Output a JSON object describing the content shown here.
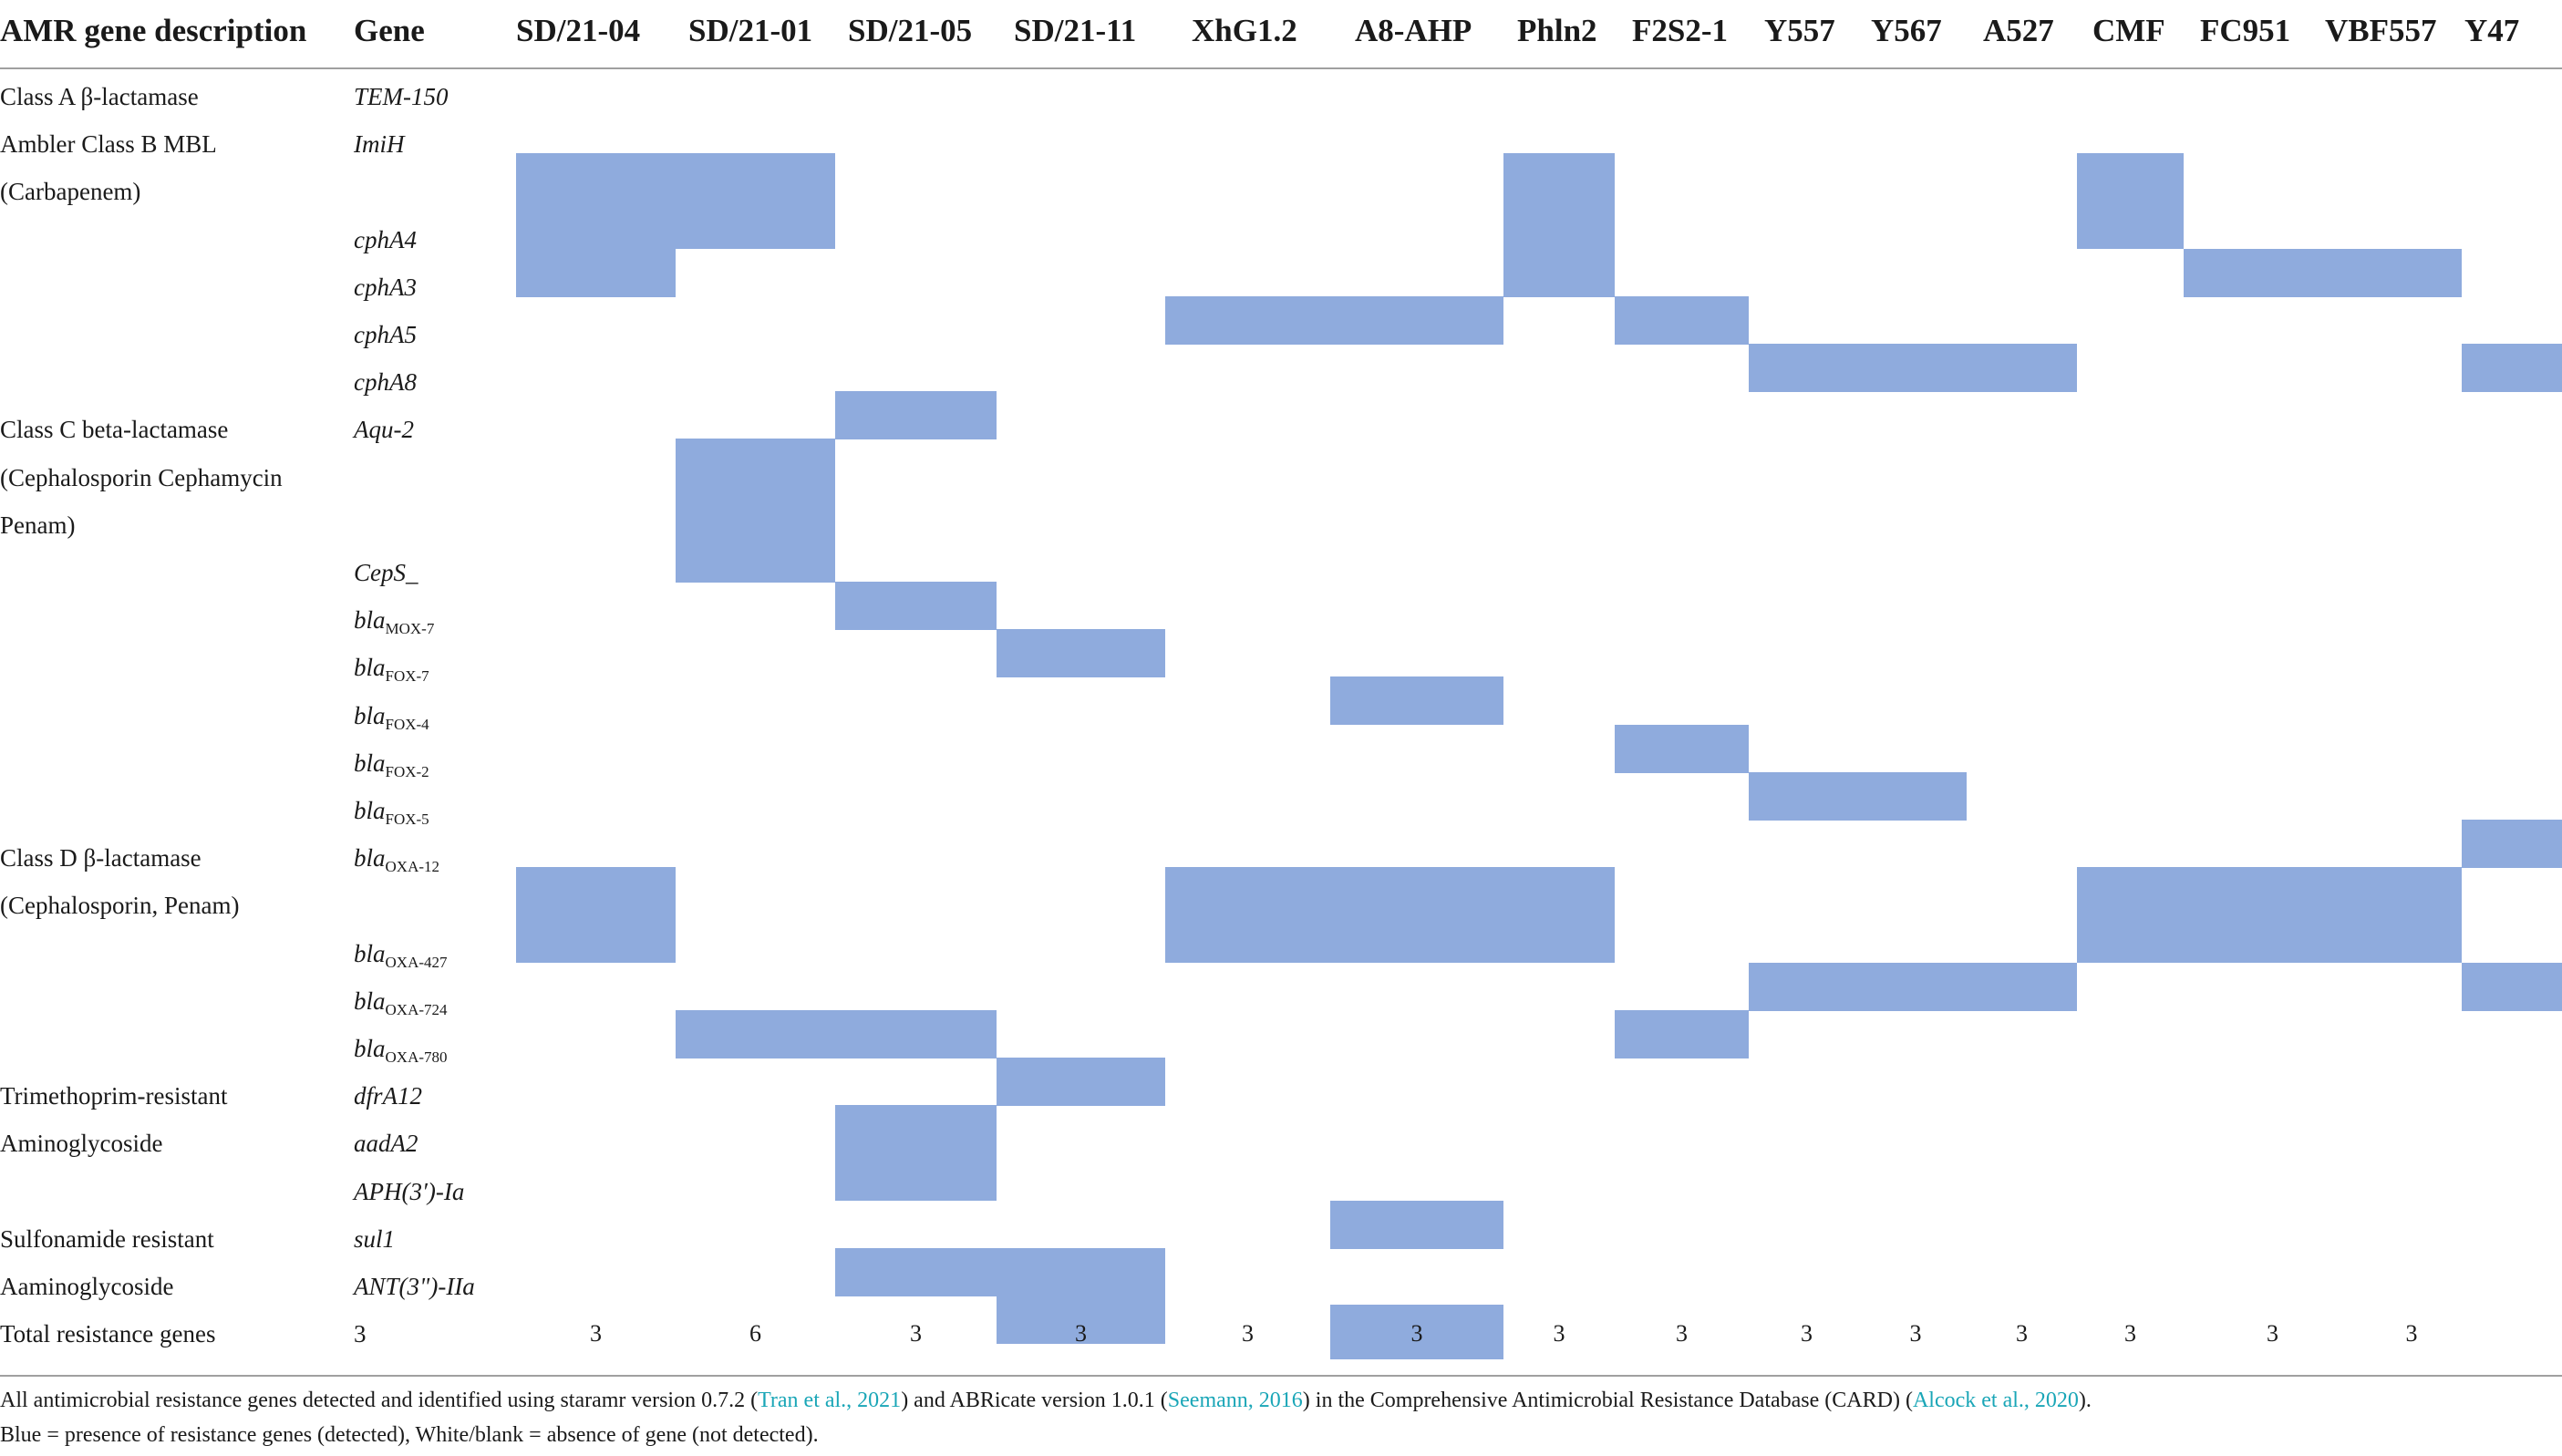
{
  "header": {
    "description_label": "AMR gene description",
    "gene_label": "Gene"
  },
  "isolates": [
    "SD/21-04",
    "SD/21-01",
    "SD/21-05",
    "SD/21-11",
    "XhG1.2",
    "A8-AHP",
    "Phln2",
    "F2S2-1",
    "Y557",
    "Y567",
    "A527",
    "CMF",
    "FC951",
    "VBF557",
    "Y47"
  ],
  "rows": [
    {
      "desc": "Class A β-lactamase",
      "gene": "TEM-150",
      "sub": "",
      "present": []
    },
    {
      "desc": "Ambler Class B MBL",
      "gene": "ImiH",
      "sub": "",
      "present": [
        0,
        1,
        6,
        11
      ]
    },
    {
      "desc": "(Carbapenem)",
      "gene": "",
      "sub": "",
      "present": [
        0,
        1,
        6,
        11
      ]
    },
    {
      "desc": "",
      "gene": "cphA4",
      "sub": "",
      "present": [
        0,
        6,
        12,
        13
      ]
    },
    {
      "desc": "",
      "gene": "cphA3",
      "sub": "",
      "present": [
        4,
        5,
        7
      ]
    },
    {
      "desc": "",
      "gene": "cphA5",
      "sub": "",
      "present": [
        8,
        9,
        10,
        14
      ]
    },
    {
      "desc": "",
      "gene": "cphA8",
      "sub": "",
      "present": [
        2
      ]
    },
    {
      "desc": "Class C beta-lactamase",
      "gene": "Aqu-2",
      "sub": "",
      "present": [
        1
      ]
    },
    {
      "desc": "(Cephalosporin Cephamycin",
      "gene": "",
      "sub": "",
      "present": [
        1
      ]
    },
    {
      "desc": "Penam)",
      "gene": "",
      "sub": "",
      "present": [
        1
      ]
    },
    {
      "desc": "",
      "gene": "CepS_",
      "sub": "",
      "present": [
        2
      ]
    },
    {
      "desc": "",
      "gene": "bla",
      "sub": "MOX-7",
      "present": [
        3
      ]
    },
    {
      "desc": "",
      "gene": "bla",
      "sub": "FOX-7",
      "present": [
        5
      ]
    },
    {
      "desc": "",
      "gene": "bla",
      "sub": "FOX-4",
      "present": [
        7
      ]
    },
    {
      "desc": "",
      "gene": "bla",
      "sub": "FOX-2",
      "present": [
        8,
        9
      ]
    },
    {
      "desc": "",
      "gene": "bla",
      "sub": "FOX-5",
      "present": [
        14
      ]
    },
    {
      "desc": "Class D β-lactamase",
      "gene": "bla",
      "sub": "OXA-12",
      "present": [
        0,
        4,
        5,
        6,
        11,
        12,
        13
      ]
    },
    {
      "desc": "(Cephalosporin, Penam)",
      "gene": "",
      "sub": "",
      "present": [
        0,
        4,
        5,
        6,
        11,
        12,
        13
      ]
    },
    {
      "desc": "",
      "gene": "bla",
      "sub": "OXA-427",
      "present": [
        8,
        9,
        10,
        14
      ]
    },
    {
      "desc": "",
      "gene": "bla",
      "sub": "OXA-724",
      "present": [
        1,
        2,
        7
      ]
    },
    {
      "desc": "",
      "gene": "bla",
      "sub": "OXA-780",
      "present": [
        3
      ]
    },
    {
      "desc": "Trimethoprim-resistant",
      "gene": "dfrA12",
      "sub": "",
      "present": [
        2
      ]
    },
    {
      "desc": "Aminoglycoside",
      "gene": "aadA2",
      "sub": "",
      "present": [
        2
      ]
    },
    {
      "desc": "",
      "gene": "APH(3′)-Ia",
      "sub": "",
      "present": [
        5
      ]
    },
    {
      "desc": "Sulfonamide resistant",
      "gene": "sul1",
      "sub": "",
      "present": [
        2,
        3
      ]
    },
    {
      "desc": "Aaminoglycoside",
      "gene": "ANT(3\")-IIa",
      "sub": "",
      "present": [
        3
      ]
    }
  ],
  "totals": {
    "label": "Total resistance genes",
    "gene_col": "3",
    "values": [
      "3",
      "6",
      "3",
      "3",
      "3",
      "3",
      "3",
      "3",
      "3",
      "3",
      "3",
      "3",
      "3",
      "3",
      ""
    ],
    "highlight": [
      5
    ]
  },
  "footnote": {
    "line1": [
      {
        "t": "All antimicrobial resistance genes detected and identified using staramr version 0.7.2 (",
        "c": false
      },
      {
        "t": "Tran et al., 2021",
        "c": true
      },
      {
        "t": ") and ABRicate version 1.0.1 (",
        "c": false
      },
      {
        "t": "Seemann, 2016",
        "c": true
      },
      {
        "t": ") in the Comprehensive Antimicrobial Resistance Database (CARD) (",
        "c": false
      },
      {
        "t": "Alcock et al., 2020",
        "c": true
      },
      {
        "t": ").",
        "c": false
      }
    ],
    "line2": "Blue = presence of resistance genes (detected), White/blank = absence of gene (not detected)."
  },
  "colors": {
    "present": "#8fabdd",
    "citation": "#1aa6b7",
    "rule": "#a0a0a0"
  }
}
